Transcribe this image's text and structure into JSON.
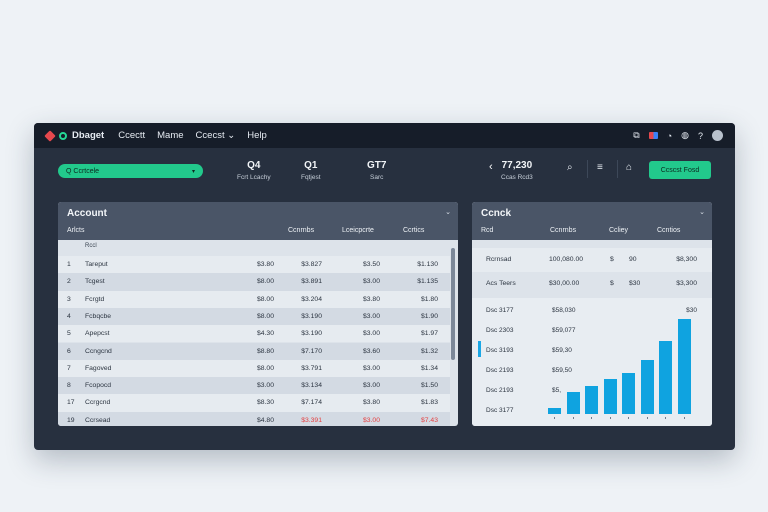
{
  "menubar": {
    "app_name": "Dbaget",
    "menu": [
      "Ccectt",
      "Mame",
      "Ccecst",
      "Help"
    ],
    "menu_dropdown_caret": "⌄"
  },
  "toolbar": {
    "search_label": "Q Ccrtcele",
    "stats": [
      {
        "value": "Q4",
        "label": "Fcrt Lcachy"
      },
      {
        "value": "Q1",
        "label": "Fqtjest"
      },
      {
        "value": "GT7",
        "label": "Sarc"
      }
    ],
    "period": {
      "value": "77,230",
      "label": "Ccas Rcd3"
    },
    "primary_button": "Ccscst Fosd"
  },
  "account_table": {
    "title": "Account",
    "first_column": "Arlcts",
    "columns": [
      "Ccnrnbs",
      "Lceicpcrte",
      "Ccrtics"
    ],
    "header_note": "Rccl",
    "rows": [
      {
        "idx": "1",
        "name": "Tareput",
        "c1": "$3.80",
        "c2": "$3.827",
        "c3": "$3.50",
        "c4": "$1.130",
        "neg": false
      },
      {
        "idx": "2",
        "name": "Tcgest",
        "c1": "$8.00",
        "c2": "$3.891",
        "c3": "$3.00",
        "c4": "$1.135",
        "neg": false
      },
      {
        "idx": "3",
        "name": "Fcrgtd",
        "c1": "$8.00",
        "c2": "$3.204",
        "c3": "$3.80",
        "c4": "$1.80",
        "neg": false
      },
      {
        "idx": "4",
        "name": "Fcbqcbe",
        "c1": "$8.00",
        "c2": "$3.190",
        "c3": "$3.00",
        "c4": "$1.90",
        "neg": false
      },
      {
        "idx": "5",
        "name": "Apepcst",
        "c1": "$4.30",
        "c2": "$3.190",
        "c3": "$3.00",
        "c4": "$1.97",
        "neg": false
      },
      {
        "idx": "6",
        "name": "Ccngcnd",
        "c1": "$8.80",
        "c2": "$7.170",
        "c3": "$3.60",
        "c4": "$1.32",
        "neg": false
      },
      {
        "idx": "7",
        "name": "Fagoved",
        "c1": "$8.00",
        "c2": "$3.791",
        "c3": "$3.00",
        "c4": "$1.34",
        "neg": false
      },
      {
        "idx": "8",
        "name": "Fcopocd",
        "c1": "$3.00",
        "c2": "$3.134",
        "c3": "$3.00",
        "c4": "$1.50",
        "neg": false
      },
      {
        "idx": "17",
        "name": "Ccrgcnd",
        "c1": "$8.30",
        "c2": "$7.174",
        "c3": "$3.80",
        "c4": "$1.83",
        "neg": false
      },
      {
        "idx": "19",
        "name": "Ccrsead",
        "c1": "$4.80",
        "c2": "$3.391",
        "c3": "$3.00",
        "c4": "$7.43",
        "neg": true
      }
    ]
  },
  "chart_panel": {
    "title": "Ccnck",
    "first_column": "Rcd",
    "columns": [
      "Ccnrnbs",
      "Ccliey",
      "Ccntios"
    ],
    "summary_rows": [
      {
        "label": "Rcrnsad",
        "c1": "100,080.00",
        "c2": "$",
        "c3": "90",
        "c4": "$8,300"
      },
      {
        "label": "Acs Teers",
        "c1": "$30,00.00",
        "c2": "$",
        "c3": "$30",
        "c4": "$3,300"
      }
    ],
    "row_labels": [
      "Dsc 3177",
      "Dsc 2303",
      "Dsc 3193",
      "Dsc 2193",
      "Dsc 2193",
      "Dsc 3177"
    ],
    "row_values": [
      "$58,030",
      "$59,077",
      "$59,30",
      "$59,50",
      "$5,",
      ""
    ],
    "top_right_value": "$30"
  },
  "chart_data": {
    "type": "bar",
    "categories": [
      "1",
      "2",
      "3",
      "4",
      "5",
      "6",
      "7",
      "8"
    ],
    "values": [
      2,
      7,
      9,
      11,
      13,
      17,
      23,
      30
    ],
    "ylim": [
      0,
      30
    ],
    "color": "#0fa3e0"
  }
}
